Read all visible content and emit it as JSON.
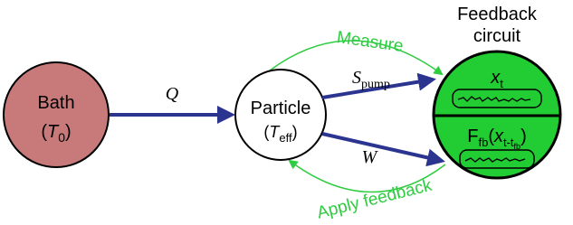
{
  "nodes": [
    {
      "label": "Bath",
      "prefix": "(",
      "symbol": "T",
      "subscript": "0",
      "suffix": ")"
    },
    {
      "label": "Particle",
      "prefix": "(",
      "symbol": "T",
      "subscript": "eff",
      "suffix": ")"
    },
    {
      "label_lines": [
        "Feedback",
        "circuit"
      ],
      "top": {
        "symbol": "x",
        "subscript": "t"
      },
      "bottom": {
        "symbol": "F",
        "subscript": "fb",
        "open": "(",
        "argument": "x",
        "argument_subscript": "t-t",
        "argument_subscript_sub": "fb",
        "close": ")"
      }
    }
  ],
  "edges": [
    {
      "label": "Q"
    },
    {
      "label": "S",
      "subscript": "pump"
    },
    {
      "label": "W"
    },
    {
      "label": "Measure"
    },
    {
      "label": "Apply feedback"
    }
  ]
}
